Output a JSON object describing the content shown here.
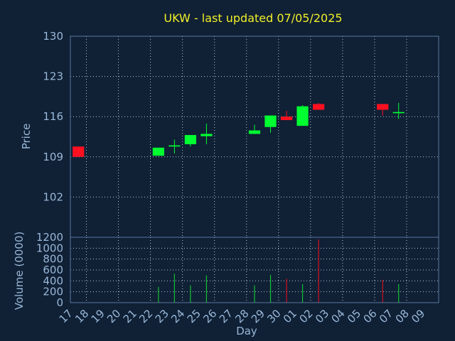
{
  "colors": {
    "background": "#102035",
    "title": "#f0f028",
    "axis_text": "#98b8d8",
    "frame": "#5878a0",
    "grid": "#b8c8d8",
    "up": "#00ff30",
    "down": "#ff1020",
    "vol_up": "#10c030",
    "vol_down": "#d01020"
  },
  "chart_data": [
    {
      "type": "candlestick",
      "title": "UKW - last updated 07/05/2025",
      "ylabel": "Price",
      "ylim": [
        95,
        130
      ],
      "yticks": [
        102,
        109,
        116,
        123,
        130
      ],
      "grid": true,
      "categories": [
        "17",
        "18",
        "19",
        "20",
        "21",
        "22",
        "23",
        "24",
        "25",
        "26",
        "27",
        "28",
        "29",
        "30",
        "01",
        "02",
        "03",
        "04",
        "05",
        "06",
        "07",
        "08",
        "09"
      ],
      "candles": [
        {
          "day": "17",
          "open": 110.8,
          "close": 109.0,
          "high": 110.8,
          "low": 109.0
        },
        {
          "day": "22",
          "open": 109.2,
          "close": 110.6,
          "high": 110.6,
          "low": 109.2
        },
        {
          "day": "23",
          "open": 110.8,
          "close": 111.0,
          "high": 112.0,
          "low": 109.6
        },
        {
          "day": "24",
          "open": 111.2,
          "close": 112.8,
          "high": 112.8,
          "low": 110.8
        },
        {
          "day": "25",
          "open": 112.6,
          "close": 113.0,
          "high": 114.8,
          "low": 111.2
        },
        {
          "day": "28",
          "open": 113.0,
          "close": 113.6,
          "high": 114.6,
          "low": 113.0
        },
        {
          "day": "29",
          "open": 114.2,
          "close": 116.2,
          "high": 116.2,
          "low": 113.2
        },
        {
          "day": "30",
          "open": 116.0,
          "close": 115.4,
          "high": 117.0,
          "low": 115.4
        },
        {
          "day": "01",
          "open": 114.4,
          "close": 117.8,
          "high": 118.0,
          "low": 114.4
        },
        {
          "day": "02",
          "open": 118.2,
          "close": 117.2,
          "high": 118.4,
          "low": 117.2
        },
        {
          "day": "06",
          "open": 118.2,
          "close": 117.2,
          "high": 118.2,
          "low": 116.2
        },
        {
          "day": "07",
          "open": 116.6,
          "close": 116.8,
          "high": 118.4,
          "low": 115.6
        }
      ]
    },
    {
      "type": "bar",
      "ylabel": "Volume (0000)",
      "xlabel": "Day",
      "ylim": [
        0,
        1200
      ],
      "yticks": [
        0,
        200,
        400,
        600,
        800,
        1000,
        1200
      ],
      "grid": true,
      "categories": [
        "17",
        "18",
        "19",
        "20",
        "21",
        "22",
        "23",
        "24",
        "25",
        "26",
        "27",
        "28",
        "29",
        "30",
        "01",
        "02",
        "03",
        "04",
        "05",
        "06",
        "07",
        "08",
        "09"
      ],
      "bars": [
        {
          "day": "22",
          "value": 290,
          "dir": "up"
        },
        {
          "day": "23",
          "value": 530,
          "dir": "up"
        },
        {
          "day": "24",
          "value": 320,
          "dir": "up"
        },
        {
          "day": "25",
          "value": 500,
          "dir": "up"
        },
        {
          "day": "28",
          "value": 320,
          "dir": "up"
        },
        {
          "day": "29",
          "value": 510,
          "dir": "up"
        },
        {
          "day": "30",
          "value": 440,
          "dir": "down"
        },
        {
          "day": "01",
          "value": 340,
          "dir": "up"
        },
        {
          "day": "02",
          "value": 1160,
          "dir": "down"
        },
        {
          "day": "06",
          "value": 420,
          "dir": "down"
        },
        {
          "day": "07",
          "value": 340,
          "dir": "up"
        }
      ]
    }
  ]
}
